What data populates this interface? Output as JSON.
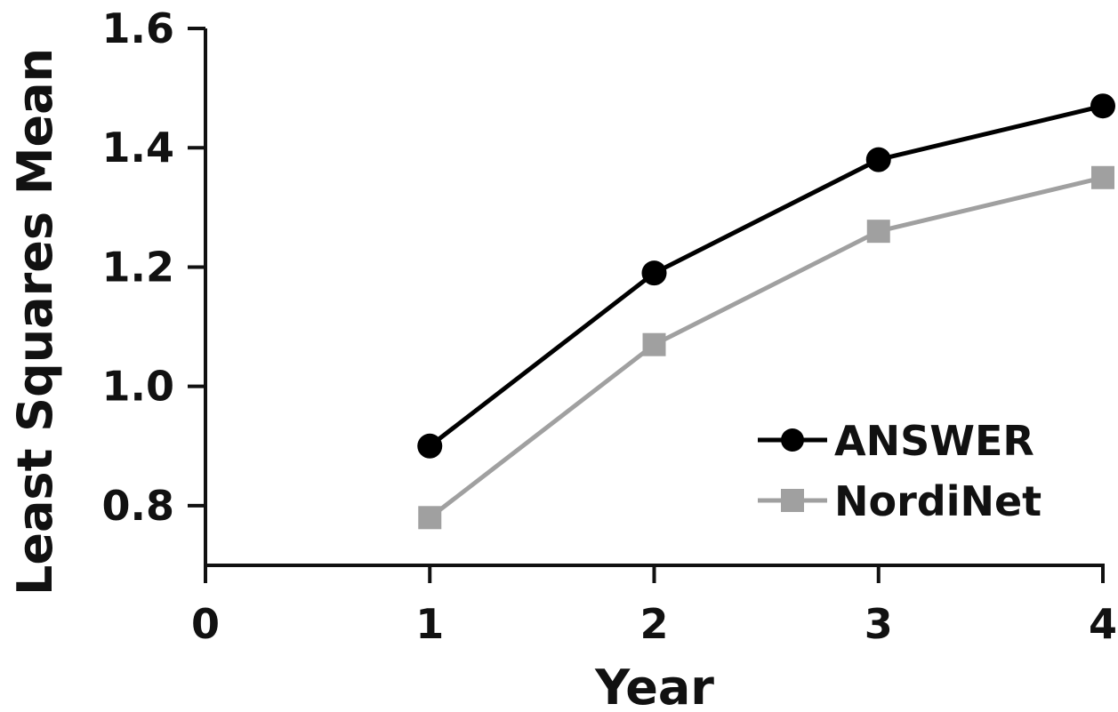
{
  "chart_data": {
    "type": "line",
    "title": "",
    "xlabel": "Year",
    "ylabel": "Least Squares Mean",
    "xlim": [
      0,
      4
    ],
    "ylim": [
      0.7,
      1.6
    ],
    "xticks": [
      0,
      1,
      2,
      3,
      4
    ],
    "xtick_labels": [
      "0",
      "1",
      "2",
      "3",
      "4"
    ],
    "yticks": [
      0.8,
      1.0,
      1.2,
      1.4,
      1.6
    ],
    "ytick_labels": [
      "0.8",
      "1.0",
      "1.2",
      "1.4",
      "1.6"
    ],
    "grid": false,
    "legend_position": "bottom-right",
    "series": [
      {
        "name": "ANSWER",
        "marker": "circle",
        "color": "#000000",
        "x": [
          1,
          2,
          3,
          4
        ],
        "y": [
          0.9,
          1.19,
          1.38,
          1.47
        ]
      },
      {
        "name": "NordiNet",
        "marker": "square",
        "color": "#a0a0a0",
        "x": [
          1,
          2,
          3,
          4
        ],
        "y": [
          0.78,
          1.07,
          1.26,
          1.35
        ]
      }
    ]
  }
}
